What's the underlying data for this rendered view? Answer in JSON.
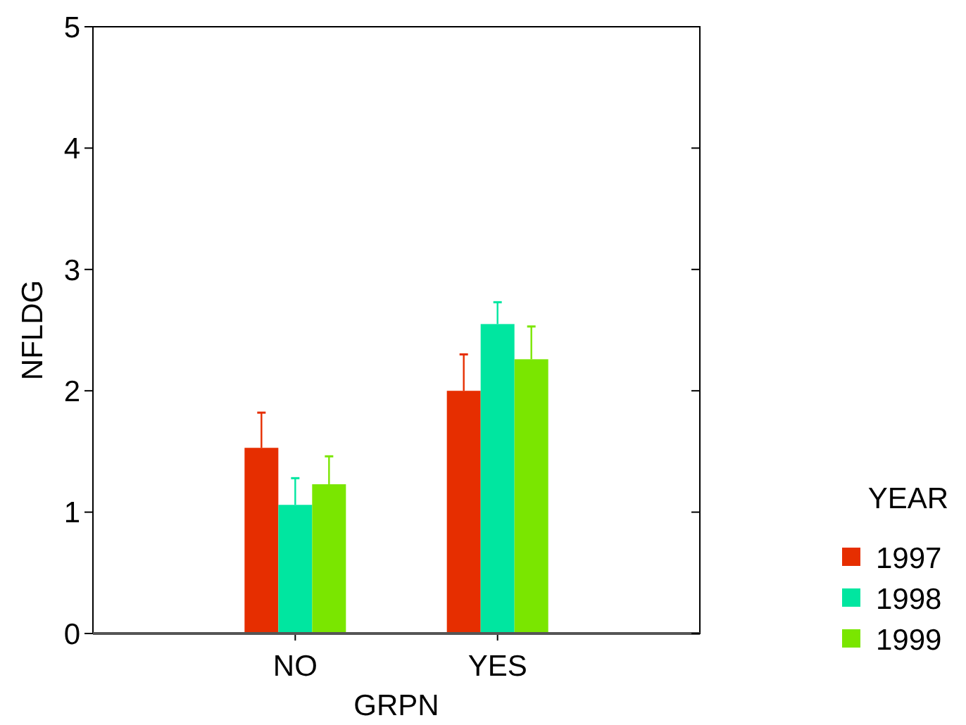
{
  "chart_data": {
    "type": "bar",
    "xlabel": "GRPN",
    "ylabel": "NFLDG",
    "legend_title": "YEAR",
    "legend": "right",
    "categories": [
      "NO",
      "YES"
    ],
    "ylim": [
      0,
      5
    ],
    "yticks": [
      0,
      1,
      2,
      3,
      4,
      5
    ],
    "series": [
      {
        "name": "1997",
        "color": "#e62e00",
        "values": [
          1.53,
          2.0
        ],
        "errors": [
          [
            1.53,
            1.82
          ],
          [
            2.0,
            2.3
          ]
        ]
      },
      {
        "name": "1998",
        "color": "#00e6a0",
        "values": [
          1.06,
          2.55
        ],
        "errors": [
          [
            1.06,
            1.28
          ],
          [
            2.55,
            2.73
          ]
        ]
      },
      {
        "name": "1999",
        "color": "#7ae600",
        "values": [
          1.23,
          2.26
        ],
        "errors": [
          [
            1.23,
            1.46
          ],
          [
            2.26,
            2.53
          ]
        ]
      }
    ]
  }
}
